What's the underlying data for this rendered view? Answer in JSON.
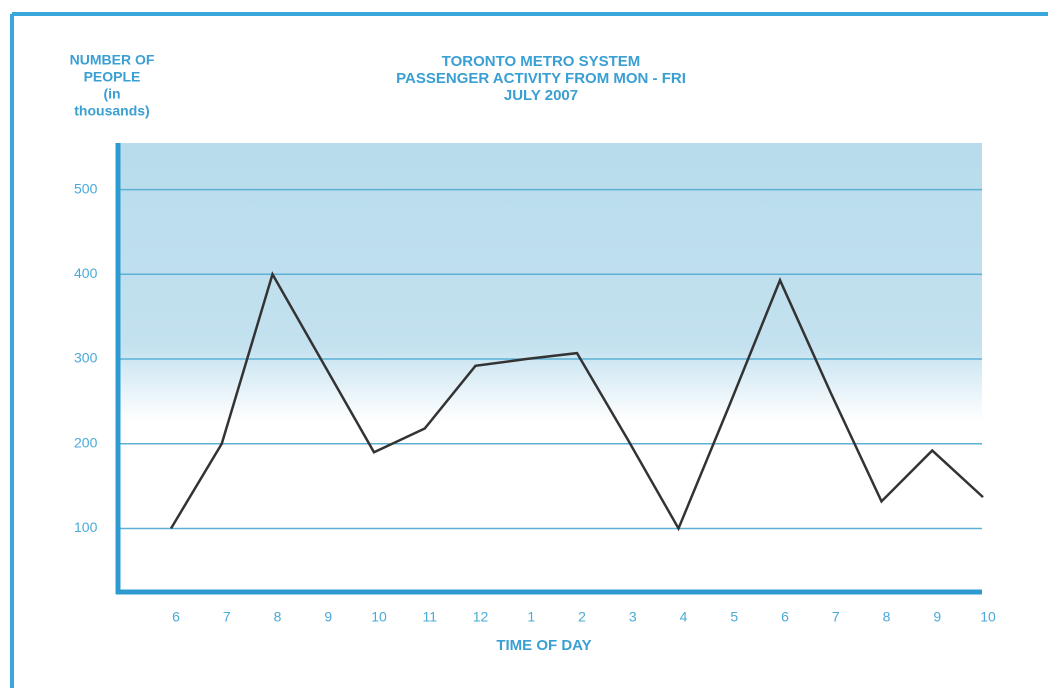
{
  "chart_data": {
    "type": "line",
    "title": [
      "TORONTO METRO SYSTEM",
      "PASSENGER ACTIVITY FROM MON - FRI",
      "JULY 2007"
    ],
    "ylabel": [
      "NUMBER OF",
      "PEOPLE",
      "(in",
      "thousands)"
    ],
    "xlabel": "TIME OF DAY",
    "categories": [
      "6",
      "7",
      "8",
      "9",
      "10",
      "11",
      "12",
      "1",
      "2",
      "3",
      "4",
      "5",
      "6",
      "7",
      "8",
      "9",
      "10"
    ],
    "values": [
      100,
      200,
      400,
      295,
      190,
      218,
      292,
      300,
      307,
      205,
      100,
      245,
      393,
      260,
      132,
      192,
      137
    ],
    "color": "#333333",
    "ylim": [
      25,
      555
    ],
    "yticks": [
      100,
      200,
      300,
      400,
      500
    ],
    "grid": true
  }
}
